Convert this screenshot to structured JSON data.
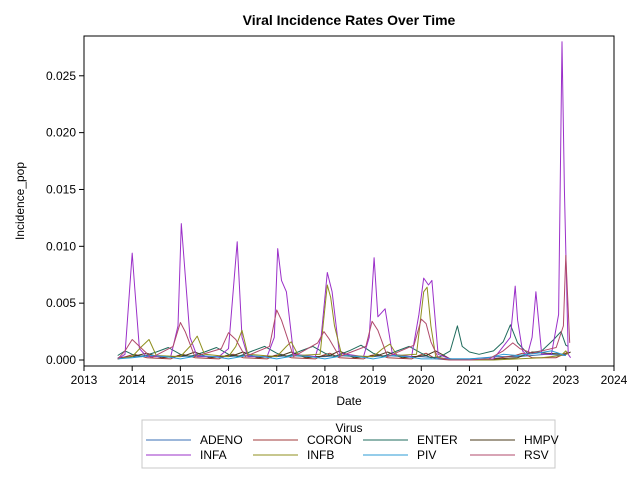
{
  "chart_data": {
    "type": "line",
    "title": "Viral Incidence Rates Over Time",
    "xlabel": "Date",
    "ylabel": "Incidence_pop",
    "xlim": [
      2013,
      2024
    ],
    "ylim": [
      0,
      0.0285
    ],
    "xticks": [
      2013,
      2014,
      2015,
      2016,
      2017,
      2018,
      2019,
      2020,
      2021,
      2022,
      2023,
      2024
    ],
    "xtick_labels": [
      "2013",
      "2014",
      "2015",
      "2016",
      "2017",
      "2018",
      "2019",
      "2020",
      "2021",
      "2022",
      "2023",
      "2024"
    ],
    "yticks": [
      0,
      0.005,
      0.01,
      0.015,
      0.02,
      0.025
    ],
    "ytick_labels": [
      "0.000",
      "0.005",
      "0.010",
      "0.015",
      "0.020",
      "0.025"
    ],
    "grid": false,
    "legend": {
      "title": "Virus",
      "placement": "bottom"
    },
    "series": [
      {
        "name": "ADENO",
        "color": "#3a6fb5",
        "x": [
          2013.7,
          2014.0,
          2014.3,
          2014.6,
          2015.0,
          2015.3,
          2015.6,
          2016.0,
          2016.3,
          2016.6,
          2017.0,
          2017.3,
          2017.6,
          2018.0,
          2018.3,
          2018.6,
          2019.0,
          2019.3,
          2019.6,
          2020.0,
          2020.3,
          2020.6,
          2021.0,
          2021.3,
          2021.6,
          2022.0,
          2022.3,
          2022.6,
          2023.0
        ],
        "y": [
          0.0002,
          0.0003,
          0.0004,
          0.0003,
          0.0003,
          0.0004,
          0.0003,
          0.0003,
          0.0004,
          0.0003,
          0.0003,
          0.0004,
          0.0003,
          0.0003,
          0.0004,
          0.0003,
          0.0003,
          0.0004,
          0.0003,
          0.0003,
          0.0002,
          0.0001,
          0.0001,
          0.0002,
          0.0003,
          0.0003,
          0.0004,
          0.0005,
          0.0004
        ]
      },
      {
        "name": "CORON",
        "color": "#a23b3b",
        "x": [
          2013.7,
          2013.95,
          2014.05,
          2014.3,
          2014.8,
          2014.95,
          2015.05,
          2015.3,
          2015.8,
          2015.95,
          2016.1,
          2016.3,
          2016.8,
          2016.95,
          2017.1,
          2017.3,
          2017.8,
          2017.95,
          2018.1,
          2018.3,
          2018.8,
          2018.95,
          2019.1,
          2019.3,
          2019.8,
          2019.95,
          2020.1,
          2020.3,
          2020.6,
          2021.0,
          2021.5,
          2021.95,
          2022.1,
          2022.3,
          2022.8,
          2022.95,
          2023.05
        ],
        "y": [
          0.0001,
          0.0004,
          0.0005,
          0.0002,
          0.0001,
          0.0004,
          0.0005,
          0.0002,
          0.0001,
          0.0004,
          0.0005,
          0.0002,
          0.0001,
          0.0004,
          0.0005,
          0.0002,
          0.0001,
          0.0004,
          0.0006,
          0.0002,
          0.0001,
          0.0004,
          0.0005,
          0.0002,
          0.0001,
          0.0004,
          0.0006,
          0.0001,
          0.0,
          0.0,
          0.0001,
          0.0004,
          0.0006,
          0.0002,
          0.0002,
          0.0005,
          0.0007
        ]
      },
      {
        "name": "ENTER",
        "color": "#1f6b5c",
        "x": [
          2013.7,
          2013.85,
          2014.0,
          2014.2,
          2014.5,
          2014.75,
          2015.0,
          2015.2,
          2015.5,
          2015.75,
          2016.0,
          2016.2,
          2016.5,
          2016.75,
          2017.0,
          2017.2,
          2017.5,
          2017.75,
          2018.0,
          2018.2,
          2018.5,
          2018.75,
          2019.0,
          2019.2,
          2019.5,
          2019.75,
          2020.0,
          2020.2,
          2020.4,
          2020.6,
          2020.75,
          2020.85,
          2021.0,
          2021.2,
          2021.5,
          2021.7,
          2021.85,
          2022.0,
          2022.2,
          2022.5,
          2022.75,
          2022.9,
          2023.0,
          2023.05
        ],
        "y": [
          0.0004,
          0.0008,
          0.0005,
          0.0003,
          0.0007,
          0.0011,
          0.0005,
          0.0003,
          0.0007,
          0.0011,
          0.0005,
          0.0003,
          0.0008,
          0.0012,
          0.0006,
          0.0003,
          0.0008,
          0.0012,
          0.0006,
          0.0003,
          0.0008,
          0.0013,
          0.0006,
          0.0003,
          0.0008,
          0.0012,
          0.0006,
          0.0002,
          0.0003,
          0.0008,
          0.003,
          0.0012,
          0.0007,
          0.0005,
          0.0008,
          0.0016,
          0.0031,
          0.0015,
          0.0006,
          0.0008,
          0.0018,
          0.0025,
          0.0013,
          0.0012
        ]
      },
      {
        "name": "HMPV",
        "color": "#4a3a1a",
        "x": [
          2013.7,
          2014.1,
          2014.3,
          2014.6,
          2015.1,
          2015.3,
          2015.6,
          2016.1,
          2016.3,
          2016.6,
          2017.1,
          2017.3,
          2017.6,
          2018.1,
          2018.3,
          2018.6,
          2019.1,
          2019.3,
          2019.6,
          2020.1,
          2020.3,
          2020.6,
          2021.0,
          2021.6,
          2022.0,
          2022.3,
          2022.6,
          2023.0,
          2023.1
        ],
        "y": [
          0.0001,
          0.0004,
          0.0006,
          0.0002,
          0.0004,
          0.0007,
          0.0002,
          0.0004,
          0.0007,
          0.0002,
          0.0004,
          0.0007,
          0.0002,
          0.0004,
          0.0008,
          0.0002,
          0.0004,
          0.0007,
          0.0002,
          0.0004,
          0.0008,
          0.0001,
          0.0,
          0.0001,
          0.0002,
          0.0007,
          0.0006,
          0.0005,
          0.0007
        ]
      },
      {
        "name": "INFA",
        "color": "#9b30c9",
        "x": [
          2013.7,
          2013.85,
          2014.0,
          2014.05,
          2014.15,
          2014.3,
          2014.8,
          2014.95,
          2015.02,
          2015.1,
          2015.2,
          2015.35,
          2015.8,
          2016.0,
          2016.18,
          2016.28,
          2016.4,
          2016.8,
          2016.95,
          2017.02,
          2017.1,
          2017.2,
          2017.35,
          2017.8,
          2017.92,
          2018.05,
          2018.15,
          2018.3,
          2018.8,
          2018.92,
          2019.02,
          2019.1,
          2019.25,
          2019.4,
          2019.8,
          2019.95,
          2020.05,
          2020.15,
          2020.22,
          2020.35,
          2020.6,
          2021.0,
          2021.5,
          2021.85,
          2021.95,
          2022.0,
          2022.1,
          2022.2,
          2022.3,
          2022.38,
          2022.5,
          2022.7,
          2022.85,
          2022.92,
          2022.97,
          2023.05,
          2023.1
        ],
        "y": [
          0.0001,
          0.0005,
          0.0094,
          0.0065,
          0.001,
          0.0003,
          0.0003,
          0.003,
          0.012,
          0.0075,
          0.002,
          0.0003,
          0.0003,
          0.001,
          0.0104,
          0.002,
          0.0003,
          0.0003,
          0.002,
          0.0098,
          0.007,
          0.006,
          0.0005,
          0.0003,
          0.002,
          0.0077,
          0.006,
          0.0006,
          0.0003,
          0.002,
          0.009,
          0.0038,
          0.0045,
          0.0005,
          0.0003,
          0.004,
          0.0072,
          0.0066,
          0.007,
          0.0005,
          0.0001,
          0.0,
          0.0001,
          0.002,
          0.0065,
          0.0035,
          0.0008,
          0.0004,
          0.002,
          0.006,
          0.0005,
          0.0005,
          0.004,
          0.028,
          0.015,
          0.0005,
          0.0002
        ]
      },
      {
        "name": "INFB",
        "color": "#8f8f1e",
        "x": [
          2013.7,
          2014.0,
          2014.2,
          2014.35,
          2014.5,
          2015.0,
          2015.2,
          2015.35,
          2015.5,
          2016.0,
          2016.15,
          2016.28,
          2016.4,
          2017.0,
          2017.2,
          2017.3,
          2017.45,
          2017.9,
          2018.05,
          2018.12,
          2018.2,
          2018.35,
          2019.0,
          2019.2,
          2019.35,
          2019.5,
          2019.9,
          2020.05,
          2020.12,
          2020.2,
          2020.3,
          2020.5,
          2021.0,
          2021.5,
          2022.0,
          2022.5,
          2022.9,
          2023.0,
          2023.05
        ],
        "y": [
          0.0001,
          0.0003,
          0.0012,
          0.0018,
          0.0004,
          0.0003,
          0.0012,
          0.0021,
          0.0005,
          0.0003,
          0.0012,
          0.0026,
          0.0005,
          0.0003,
          0.0012,
          0.0016,
          0.0004,
          0.0005,
          0.0066,
          0.0055,
          0.003,
          0.0004,
          0.0003,
          0.001,
          0.0014,
          0.0004,
          0.0005,
          0.006,
          0.0064,
          0.003,
          0.0003,
          0.0001,
          0.0,
          0.0,
          0.0001,
          0.0002,
          0.0004,
          0.0008,
          0.0005
        ]
      },
      {
        "name": "PIV",
        "color": "#2b9bd6",
        "x": [
          2013.7,
          2014.0,
          2014.4,
          2014.7,
          2015.0,
          2015.4,
          2015.7,
          2016.0,
          2016.4,
          2016.7,
          2017.0,
          2017.4,
          2017.7,
          2018.0,
          2018.4,
          2018.7,
          2019.0,
          2019.4,
          2019.7,
          2020.0,
          2020.4,
          2020.7,
          2021.0,
          2021.4,
          2021.7,
          2022.0,
          2022.4,
          2022.7,
          2023.0
        ],
        "y": [
          0.0001,
          0.0002,
          0.0004,
          0.0003,
          0.0001,
          0.0004,
          0.0003,
          0.0001,
          0.0004,
          0.0003,
          0.0001,
          0.0004,
          0.0003,
          0.0001,
          0.0004,
          0.0003,
          0.0001,
          0.0004,
          0.0003,
          0.0001,
          0.0001,
          0.0001,
          0.0001,
          0.0002,
          0.0005,
          0.0004,
          0.0006,
          0.0008,
          0.0004
        ]
      },
      {
        "name": "RSV",
        "color": "#b04a6b",
        "x": [
          2013.7,
          2013.85,
          2014.0,
          2014.15,
          2014.4,
          2014.85,
          2015.0,
          2015.1,
          2015.3,
          2015.85,
          2016.0,
          2016.15,
          2016.35,
          2016.85,
          2017.0,
          2017.1,
          2017.35,
          2017.85,
          2017.98,
          2018.08,
          2018.3,
          2018.85,
          2018.98,
          2019.1,
          2019.3,
          2019.85,
          2020.0,
          2020.1,
          2020.2,
          2020.35,
          2020.6,
          2021.0,
          2021.4,
          2021.7,
          2021.9,
          2022.05,
          2022.3,
          2022.6,
          2022.8,
          2022.95,
          2023.0,
          2023.08
        ],
        "y": [
          0.0001,
          0.0008,
          0.0018,
          0.0012,
          0.0002,
          0.0012,
          0.0033,
          0.0025,
          0.0003,
          0.001,
          0.0024,
          0.0018,
          0.0003,
          0.0012,
          0.0044,
          0.0035,
          0.0003,
          0.0015,
          0.0025,
          0.0019,
          0.0003,
          0.0012,
          0.0034,
          0.0026,
          0.0003,
          0.0013,
          0.0036,
          0.0032,
          0.0016,
          0.0002,
          0.0,
          0.0,
          0.0001,
          0.0008,
          0.0015,
          0.001,
          0.0006,
          0.0009,
          0.0011,
          0.003,
          0.0092,
          0.0015
        ]
      }
    ]
  }
}
